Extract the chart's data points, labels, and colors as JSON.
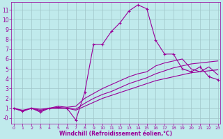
{
  "xlabel": "Windchill (Refroidissement éolien,°C)",
  "bg_color": "#c0eaec",
  "grid_color": "#a0c4c8",
  "line_color": "#990099",
  "xlim": [
    -0.3,
    23.3
  ],
  "ylim": [
    -0.6,
    11.8
  ],
  "xticks": [
    0,
    1,
    2,
    3,
    4,
    5,
    6,
    7,
    8,
    9,
    10,
    11,
    12,
    13,
    14,
    15,
    16,
    17,
    18,
    19,
    20,
    21,
    22,
    23
  ],
  "yticks": [
    0,
    1,
    2,
    3,
    4,
    5,
    6,
    7,
    8,
    9,
    10,
    11
  ],
  "ytick_labels": [
    "-0",
    "1",
    "2",
    "3",
    "4",
    "5",
    "6",
    "7",
    "8",
    "9",
    "10",
    "11"
  ],
  "line1_x": [
    0,
    1,
    2,
    3,
    4,
    5,
    6,
    7,
    8,
    9,
    10,
    11,
    12,
    13,
    14,
    15,
    16,
    17,
    18,
    19,
    20,
    21,
    22,
    23
  ],
  "line1_y": [
    1.0,
    0.7,
    1.0,
    0.6,
    1.0,
    1.1,
    1.0,
    -0.2,
    2.6,
    7.5,
    7.5,
    8.8,
    9.7,
    10.9,
    11.5,
    11.1,
    7.9,
    6.5,
    6.5,
    5.0,
    4.7,
    5.2,
    4.2,
    3.9
  ],
  "line2_x": [
    0,
    1,
    2,
    3,
    4,
    5,
    6,
    7,
    8,
    9,
    10,
    11,
    12,
    13,
    14,
    15,
    16,
    17,
    18,
    19,
    20,
    21,
    22,
    23
  ],
  "line2_y": [
    1.0,
    0.8,
    1.0,
    0.9,
    1.0,
    1.2,
    1.1,
    1.2,
    2.0,
    2.5,
    3.0,
    3.4,
    3.8,
    4.2,
    4.5,
    4.7,
    5.3,
    5.6,
    5.8,
    6.0,
    5.0,
    4.7,
    5.2,
    4.4
  ],
  "line3_x": [
    0,
    1,
    2,
    3,
    4,
    5,
    6,
    7,
    8,
    9,
    10,
    11,
    12,
    13,
    14,
    15,
    16,
    17,
    18,
    19,
    20,
    21,
    22,
    23
  ],
  "line3_y": [
    1.0,
    0.7,
    1.0,
    0.8,
    1.0,
    1.0,
    1.0,
    0.9,
    1.5,
    2.0,
    2.4,
    2.7,
    3.1,
    3.5,
    3.8,
    4.1,
    4.5,
    4.8,
    5.1,
    5.3,
    5.5,
    5.6,
    5.7,
    5.8
  ],
  "line4_x": [
    0,
    1,
    2,
    3,
    4,
    5,
    6,
    7,
    8,
    9,
    10,
    11,
    12,
    13,
    14,
    15,
    16,
    17,
    18,
    19,
    20,
    21,
    22,
    23
  ],
  "line4_y": [
    1.0,
    0.7,
    1.0,
    0.7,
    1.0,
    1.0,
    1.0,
    0.8,
    1.2,
    1.6,
    2.0,
    2.3,
    2.6,
    2.9,
    3.2,
    3.5,
    3.8,
    4.0,
    4.2,
    4.4,
    4.6,
    4.7,
    4.8,
    4.9
  ]
}
